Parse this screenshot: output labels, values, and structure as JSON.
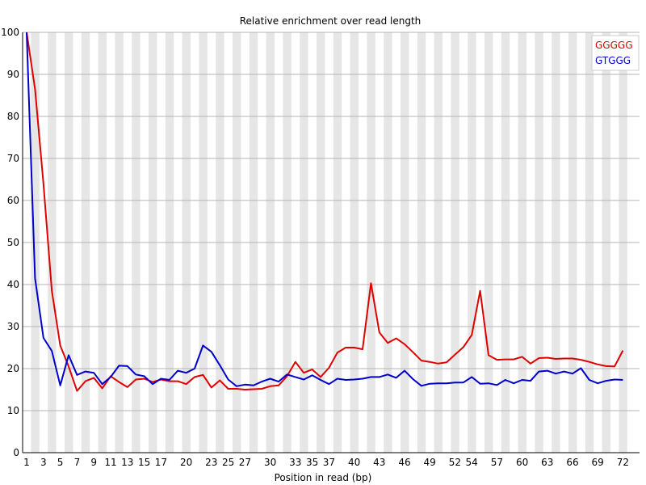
{
  "chart_data": {
    "type": "line",
    "title": "Relative enrichment over read length",
    "xlabel": "Position in read (bp)",
    "ylabel": "",
    "ylim": [
      0,
      100
    ],
    "yticks": [
      0,
      10,
      20,
      30,
      40,
      50,
      60,
      70,
      80,
      90,
      100
    ],
    "categories": [
      "1",
      "2",
      "3",
      "4",
      "5",
      "6",
      "7",
      "8",
      "9",
      "10",
      "11",
      "12",
      "13",
      "14",
      "15",
      "16",
      "17",
      "18",
      "19",
      "20",
      "21",
      "22",
      "23",
      "24",
      "25",
      "26",
      "27",
      "28",
      "29",
      "30",
      "31",
      "32",
      "33",
      "34",
      "35",
      "36",
      "37",
      "38",
      "39",
      "40",
      "41",
      "42",
      "43",
      "44",
      "45",
      "46",
      "47",
      "48",
      "49",
      "50",
      "51",
      "52",
      "53",
      "54",
      "55",
      "56",
      "57",
      "58",
      "59",
      "60",
      "61",
      "62",
      "63",
      "64",
      "65",
      "66",
      "67",
      "68",
      "69",
      "70",
      "71",
      "72"
    ],
    "tick_labels": [
      "1",
      "3",
      "5",
      "7",
      "9",
      "11",
      "13",
      "15",
      "17",
      "20",
      "23",
      "25",
      "27",
      "30",
      "33",
      "35",
      "37",
      "40",
      "43",
      "46",
      "49",
      "52",
      "54",
      "57",
      "60",
      "63",
      "66",
      "69",
      "72"
    ],
    "grid": "alternating-vertical-bands-with-horizontal-lines",
    "legend_position": "top-right",
    "series": [
      {
        "name": "GGGGG",
        "color": "#e00000",
        "values": [
          100,
          86.5,
          64,
          38.5,
          25.5,
          20.5,
          14.7,
          17,
          17.8,
          15.3,
          18.2,
          16.8,
          15.6,
          17.4,
          17.6,
          16.8,
          17.4,
          17,
          17,
          16.3,
          18,
          18.5,
          15.5,
          17.2,
          15.2,
          15.2,
          15,
          15.1,
          15.2,
          15.8,
          16,
          18.2,
          21.6,
          19,
          19.8,
          18,
          20.2,
          23.8,
          25,
          25,
          24.6,
          40.3,
          28.6,
          26.1,
          27.2,
          25.8,
          23.9,
          21.9,
          21.6,
          21.2,
          21.5,
          23.3,
          25.1,
          28,
          38.5,
          23.2,
          22.1,
          22.2,
          22.2,
          22.8,
          21.2,
          22.5,
          22.6,
          22.3,
          22.4,
          22.4,
          22.1,
          21.6,
          21,
          20.6,
          20.5,
          24.3
        ]
      },
      {
        "name": "GTGGG",
        "color": "#0000cc",
        "values": [
          100,
          41.5,
          27.3,
          24.2,
          16,
          23.2,
          18.5,
          19.3,
          19,
          16.3,
          18,
          20.7,
          20.6,
          18.6,
          18.2,
          16.3,
          17.6,
          17.3,
          19.5,
          19,
          20,
          25.5,
          24,
          20.8,
          17.4,
          15.8,
          16.2,
          16,
          16.9,
          17.6,
          16.9,
          18.6,
          18,
          17.4,
          18.4,
          17.3,
          16.3,
          17.6,
          17.3,
          17.4,
          17.6,
          18,
          18,
          18.6,
          17.8,
          19.5,
          17.5,
          15.9,
          16.4,
          16.5,
          16.5,
          16.7,
          16.7,
          18,
          16.4,
          16.5,
          16.1,
          17.3,
          16.5,
          17.3,
          17.1,
          19.3,
          19.5,
          18.8,
          19.3,
          18.8,
          20.1,
          17.3,
          16.5,
          17.1,
          17.4,
          17.3
        ]
      }
    ]
  }
}
